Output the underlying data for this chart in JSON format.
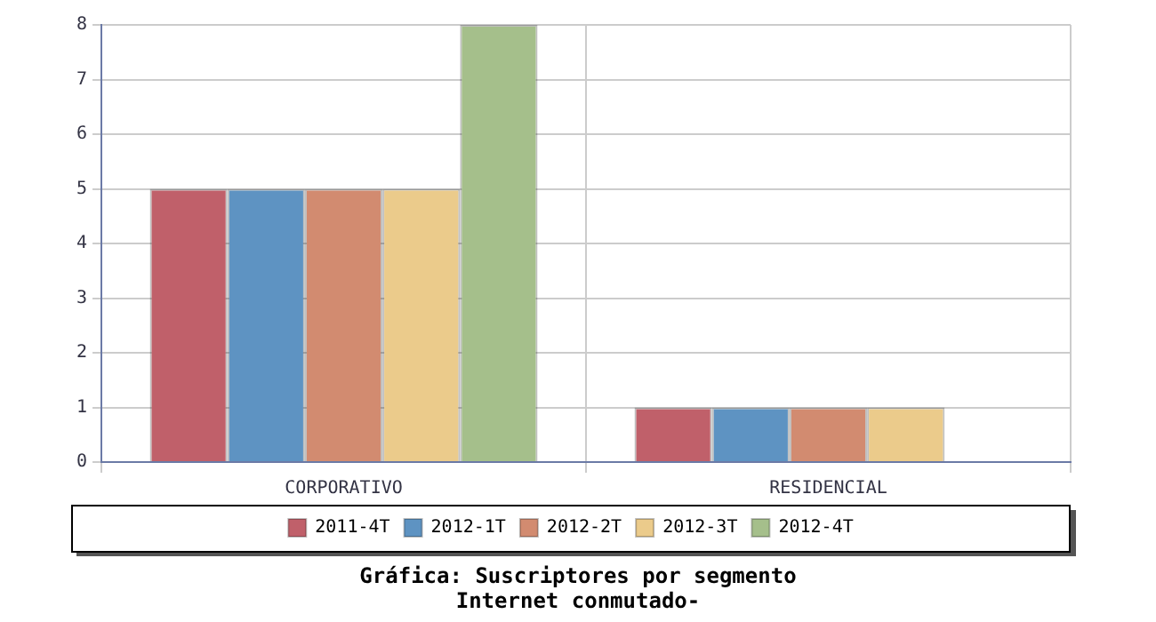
{
  "chart_data": {
    "type": "bar",
    "title": "Gráfica: Suscriptores por segmento",
    "subtitle": "Internet conmutado-",
    "categories": [
      "CORPORATIVO",
      "RESIDENCIAL"
    ],
    "series": [
      {
        "name": "2011-4T",
        "color": "#c0606a",
        "values": [
          5,
          1
        ]
      },
      {
        "name": "2012-1T",
        "color": "#5e93c2",
        "values": [
          5,
          1
        ]
      },
      {
        "name": "2012-2T",
        "color": "#d28b70",
        "values": [
          5,
          1
        ]
      },
      {
        "name": "2012-3T",
        "color": "#ebcb8b",
        "values": [
          5,
          1
        ]
      },
      {
        "name": "2012-4T",
        "color": "#a5bf8b",
        "values": [
          8,
          null
        ]
      }
    ],
    "ylim": [
      0,
      8
    ],
    "yticks": [
      0,
      1,
      2,
      3,
      4,
      5,
      6,
      7,
      8
    ],
    "grid": true,
    "legend": "bottom"
  }
}
